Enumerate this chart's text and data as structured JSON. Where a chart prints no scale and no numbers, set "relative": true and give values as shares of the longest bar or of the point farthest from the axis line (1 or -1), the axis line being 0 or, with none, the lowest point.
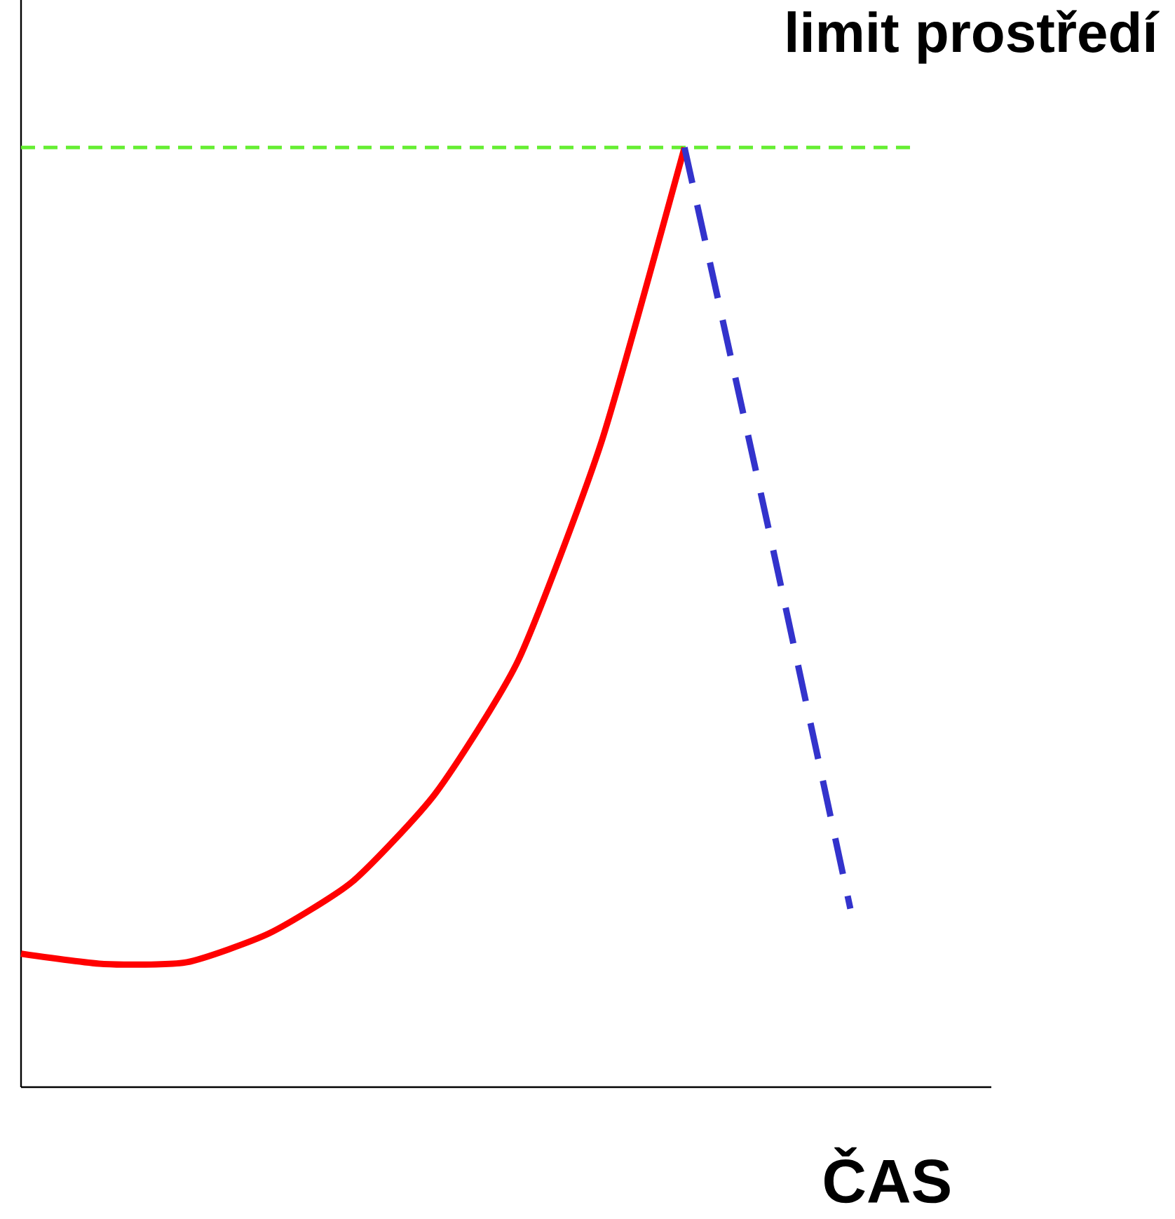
{
  "chart_data": {
    "type": "line",
    "relative": true,
    "xlabel": "ČAS",
    "categories": [
      null,
      null,
      null,
      null,
      null,
      null,
      null,
      null,
      null,
      null,
      null,
      null
    ],
    "series": [
      {
        "color": "#ff0000",
        "line_style": "solid",
        "values": [
          0.142,
          0.131,
          0.133,
          0.164,
          0.219,
          0.313,
          0.455,
          0.687,
          1.0,
          null,
          null,
          null
        ]
      },
      {
        "color": "#3333cc",
        "line_style": "dashed",
        "values": [
          null,
          null,
          null,
          null,
          null,
          null,
          null,
          null,
          1.0,
          0.6,
          0.19,
          null
        ]
      }
    ],
    "ref_lines": [
      {
        "axis": "y",
        "value": 1.0,
        "label": "limit prostředí",
        "color": "#66ee33",
        "line_style": "dashed"
      }
    ]
  }
}
